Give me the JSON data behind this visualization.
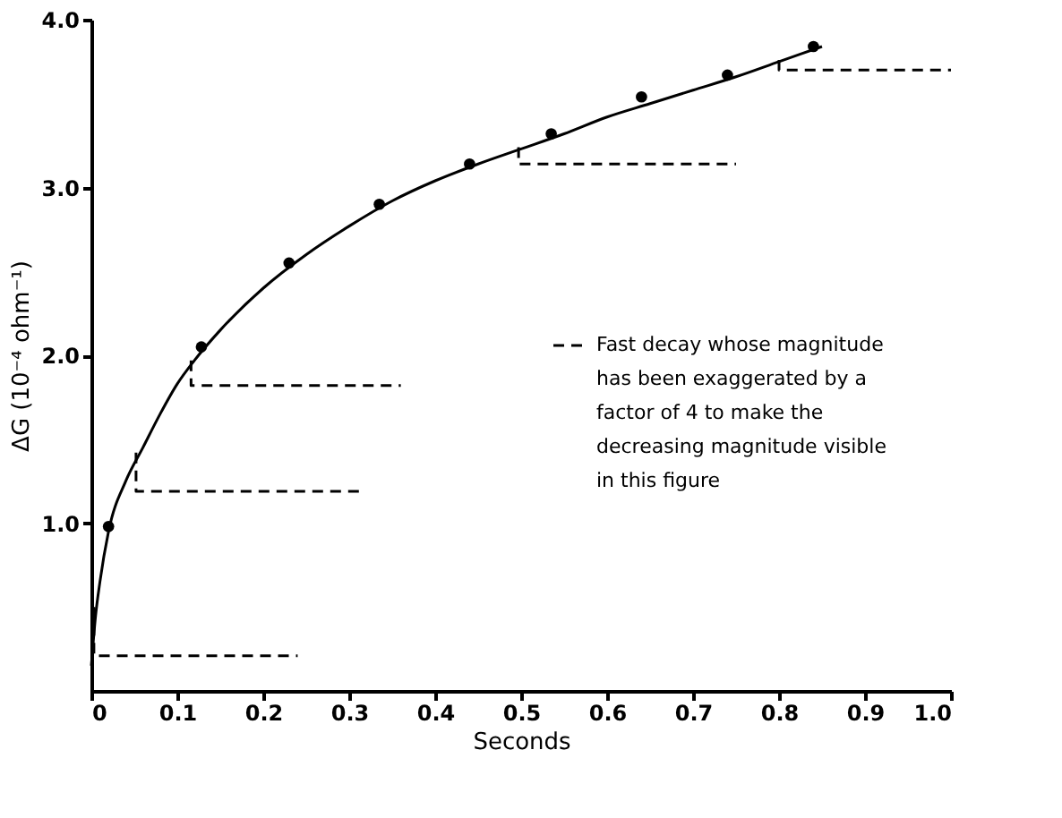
{
  "chart_data": {
    "type": "scatter",
    "xlabel": "Seconds",
    "ylabel": "ΔG (10⁻⁴ ohm⁻¹)",
    "xlim": [
      0,
      1.0
    ],
    "ylim": [
      0,
      4.0
    ],
    "xticks": [
      0,
      0.1,
      0.2,
      0.3,
      0.4,
      0.5,
      0.6,
      0.7,
      0.8,
      0.9,
      {
        "value": 1.0,
        "label": "1.0"
      }
    ],
    "yticks": [
      {
        "value": 1.0,
        "label": "1.0"
      },
      {
        "value": 2.0,
        "label": "2.0"
      },
      {
        "value": 3.0,
        "label": "3.0"
      },
      {
        "value": 4.0,
        "label": "4.0"
      }
    ],
    "grid": false,
    "legend": "right",
    "series": [
      {
        "color": "#000000",
        "marker": "circle",
        "x": [
          0.02,
          0.128,
          0.23,
          0.335,
          0.44,
          0.535,
          0.64,
          0.74,
          0.84
        ],
        "values": [
          0.98,
          2.05,
          2.55,
          2.9,
          3.14,
          3.32,
          3.54,
          3.67,
          3.84
        ]
      },
      {
        "type": "line",
        "color": "#000000",
        "line_style": "solid",
        "x": [
          0,
          0.005,
          0.01,
          0.02,
          0.04,
          0.06,
          0.08,
          0.1,
          0.12,
          0.15,
          0.2,
          0.25,
          0.3,
          0.35,
          0.4,
          0.45,
          0.5,
          0.55,
          0.6,
          0.65,
          0.7,
          0.75,
          0.8,
          0.85
        ],
        "values": [
          0.15,
          0.45,
          0.65,
          0.95,
          1.25,
          1.45,
          1.65,
          1.83,
          1.97,
          2.15,
          2.4,
          2.6,
          2.77,
          2.92,
          3.04,
          3.14,
          3.23,
          3.32,
          3.42,
          3.5,
          3.58,
          3.66,
          3.75,
          3.84
        ]
      },
      {
        "type": "line",
        "name": "Fast decay whose magnitude has been exaggerated by a factor of 4 to make the decreasing magnitude visible in this figure",
        "color": "#000000",
        "line_style": "dashed",
        "x": [
          0.003,
          0.003,
          0.24,
          null,
          0.052,
          0.052,
          0.313,
          null,
          0.116,
          0.116,
          0.36,
          null,
          0.497,
          0.497,
          0.75,
          null,
          0.8,
          0.8,
          1.0
        ],
        "values": [
          0.5,
          0.21,
          0.21,
          null,
          1.42,
          1.19,
          1.19,
          null,
          1.97,
          1.82,
          1.82,
          null,
          3.24,
          3.14,
          3.14,
          null,
          3.76,
          3.7,
          3.7
        ]
      }
    ]
  }
}
